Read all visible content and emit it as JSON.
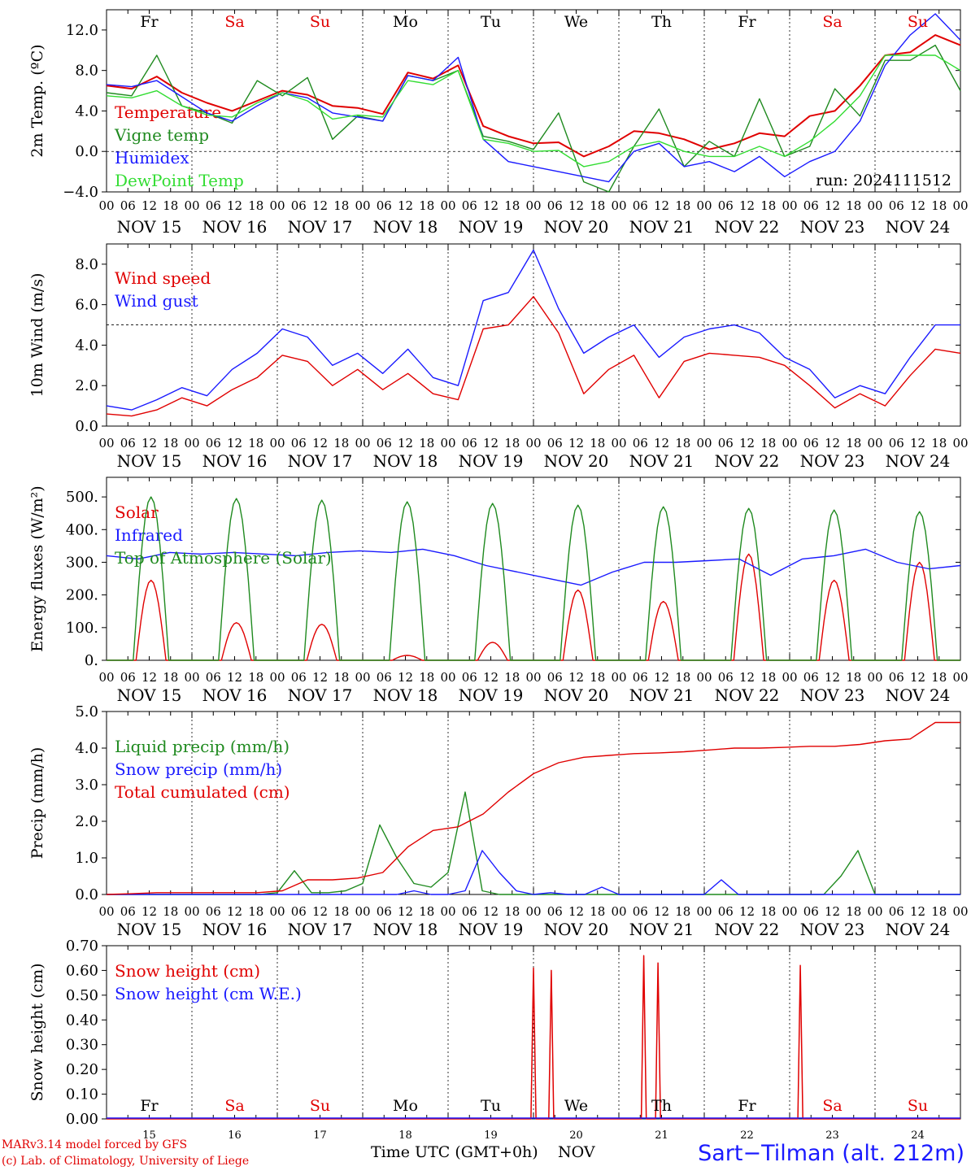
{
  "days": {
    "names": [
      "Fr",
      "Sa",
      "Su",
      "Mo",
      "Tu",
      "We",
      "Th",
      "Fr",
      "Sa",
      "Su"
    ],
    "weekend_color": "#e00000",
    "weekday_color": "#000000",
    "weekend_flags": [
      false,
      true,
      true,
      false,
      false,
      false,
      false,
      false,
      true,
      true
    ],
    "date_labels": [
      "NOV 15",
      "NOV 16",
      "NOV 17",
      "NOV 18",
      "NOV 19",
      "NOV 20",
      "NOV 21",
      "NOV 22",
      "NOV 23",
      "NOV 24"
    ],
    "day_numbers": [
      "15",
      "16",
      "17",
      "18",
      "19",
      "20",
      "21",
      "22",
      "23",
      "24"
    ],
    "hour_ticks": [
      "00",
      "06",
      "12",
      "18"
    ],
    "last_tick": "00"
  },
  "footer": {
    "model_line": "MARv3.14 model forced by GFS",
    "copyright_line": "(c) Lab. of Climatology, University of Liege",
    "xlabel": "Time UTC (GMT+0h)",
    "month": "NOV",
    "station": "Sart−Tilman (alt. 212m)"
  },
  "chart_data": [
    {
      "type": "line",
      "ylabel": "2m Temp. (ºC)",
      "ylim": [
        -4,
        14
      ],
      "yticks": [
        "12.0",
        "8.0",
        "4.0",
        "0.0",
        "−4.0"
      ],
      "ytick_values": [
        12,
        8,
        4,
        0,
        -4
      ],
      "ref_line": 0,
      "annotation": "run: 2024111512",
      "x_hours": [
        0,
        6,
        12,
        18,
        24,
        30,
        36,
        42,
        48,
        54,
        60,
        66,
        72,
        78,
        84,
        90,
        96,
        102,
        108,
        114,
        120,
        126,
        132,
        138,
        144,
        150,
        156,
        162,
        168,
        174,
        180,
        186,
        192,
        198,
        204,
        210,
        216,
        222,
        228,
        234,
        240
      ],
      "series": [
        {
          "name": "Temperature",
          "color": "#e00000",
          "values": [
            6.5,
            6.2,
            7.4,
            5.8,
            4.8,
            4.0,
            5.0,
            6.0,
            5.6,
            4.5,
            4.3,
            3.7,
            7.8,
            7.2,
            8.5,
            2.5,
            1.5,
            0.8,
            0.9,
            -0.5,
            0.5,
            2.0,
            1.8,
            1.2,
            0.2,
            0.8,
            1.8,
            1.5,
            3.5,
            4.0,
            6.5,
            9.5,
            9.8,
            11.5,
            10.5
          ]
        },
        {
          "name": "Vigne temp",
          "color": "#1f8a1f",
          "values": [
            5.8,
            5.5,
            9.5,
            4.5,
            3.8,
            2.8,
            7.0,
            5.5,
            7.3,
            1.2,
            3.5,
            3.0,
            7.5,
            7.0,
            8.0,
            1.5,
            1.0,
            0.2,
            3.8,
            -3.0,
            -4.0,
            0.5,
            4.2,
            -1.5,
            1.0,
            -0.5,
            5.2,
            -0.5,
            0.5,
            6.2,
            3.5,
            9.0,
            9.0,
            10.5,
            6.0
          ]
        },
        {
          "name": "Humidex",
          "color": "#1a1aff",
          "values": [
            6.6,
            6.4,
            7.0,
            5.4,
            3.8,
            3.0,
            4.5,
            5.8,
            5.3,
            3.8,
            3.4,
            3.0,
            7.5,
            7.0,
            9.3,
            1.2,
            -1.0,
            -1.5,
            -2.0,
            -2.5,
            -3.0,
            0.0,
            0.8,
            -1.5,
            -1.0,
            -2.0,
            -0.5,
            -2.5,
            -1.0,
            0.0,
            3.0,
            8.5,
            11.5,
            13.6,
            11.0
          ]
        },
        {
          "name": "DewPoint Temp",
          "color": "#33dd33",
          "values": [
            5.5,
            5.3,
            6.0,
            4.5,
            3.6,
            3.4,
            4.8,
            5.8,
            5.0,
            3.2,
            3.6,
            3.4,
            7.0,
            6.6,
            8.0,
            1.2,
            0.8,
            0.0,
            0.1,
            -1.5,
            -1.0,
            0.5,
            1.0,
            0.0,
            -0.5,
            -0.5,
            0.5,
            -0.5,
            1.0,
            3.0,
            5.5,
            9.5,
            9.5,
            9.5,
            8.0
          ]
        }
      ]
    },
    {
      "type": "line",
      "ylabel": "10m Wind (m/s)",
      "ylim": [
        0,
        9
      ],
      "yticks": [
        "8.0",
        "6.0",
        "4.0",
        "2.0",
        "0.0"
      ],
      "ytick_values": [
        8,
        6,
        4,
        2,
        0
      ],
      "ref_line": 5,
      "series": [
        {
          "name": "Wind speed",
          "color": "#e00000",
          "values": [
            0.6,
            0.5,
            0.8,
            1.4,
            1.0,
            1.8,
            2.4,
            3.5,
            3.2,
            2.0,
            2.8,
            1.8,
            2.6,
            1.6,
            1.3,
            4.8,
            5.0,
            6.4,
            4.6,
            1.6,
            2.8,
            3.5,
            1.4,
            3.2,
            3.6,
            3.5,
            3.4,
            3.0,
            2.0,
            0.9,
            1.6,
            1.0,
            2.5,
            3.8,
            3.6
          ]
        },
        {
          "name": "Wind gust",
          "color": "#1a1aff",
          "values": [
            1.0,
            0.8,
            1.3,
            1.9,
            1.5,
            2.8,
            3.6,
            4.8,
            4.4,
            3.0,
            3.6,
            2.6,
            3.8,
            2.4,
            2.0,
            6.2,
            6.6,
            8.7,
            5.8,
            3.6,
            4.4,
            5.0,
            3.4,
            4.4,
            4.8,
            5.0,
            4.6,
            3.4,
            2.8,
            1.4,
            2.0,
            1.6,
            3.4,
            5.0,
            5.0
          ]
        }
      ]
    },
    {
      "type": "line",
      "ylabel": "Energy fluxes (W/m²)",
      "ylim": [
        0,
        560
      ],
      "yticks": [
        "500.",
        "400.",
        "300.",
        "200.",
        "100.",
        "0."
      ],
      "ytick_values": [
        500,
        400,
        300,
        200,
        100,
        0
      ],
      "series": [
        {
          "name": "Solar",
          "color": "#e00000",
          "peaks": [
            245,
            115,
            110,
            15,
            55,
            215,
            180,
            325,
            245,
            300
          ]
        },
        {
          "name": "Infrared",
          "color": "#1a1aff",
          "values": [
            320,
            310,
            330,
            325,
            330,
            325,
            320,
            330,
            335,
            330,
            340,
            320,
            290,
            270,
            250,
            230,
            270,
            300,
            300,
            305,
            310,
            260,
            310,
            320,
            340,
            300,
            280,
            290
          ]
        },
        {
          "name": "Top of Atmosphere (Solar)",
          "color": "#1f8a1f",
          "peaks": [
            500,
            495,
            490,
            485,
            480,
            475,
            470,
            465,
            460,
            455
          ]
        }
      ]
    },
    {
      "type": "line",
      "ylabel": "Precip (mm/h)",
      "ylim": [
        0,
        5
      ],
      "yticks": [
        "5.0",
        "4.0",
        "3.0",
        "2.0",
        "1.0",
        "0.0"
      ],
      "ytick_values": [
        5,
        4,
        3,
        2,
        1,
        0
      ],
      "series": [
        {
          "name": "Liquid precip (mm/h)",
          "color": "#1f8a1f",
          "values": [
            0,
            0,
            0,
            0,
            0,
            0,
            0,
            0,
            0,
            0,
            0.05,
            0.65,
            0.05,
            0.05,
            0.1,
            0.3,
            1.9,
            1.0,
            0.3,
            0.2,
            0.6,
            2.8,
            0.1,
            0.0,
            0,
            0,
            0,
            0,
            0,
            0,
            0,
            0,
            0,
            0,
            0,
            0,
            0,
            0,
            0,
            0,
            0,
            0,
            0,
            0.5,
            1.2,
            0,
            0,
            0,
            0,
            0,
            0
          ]
        },
        {
          "name": "Snow precip (mm/h)",
          "color": "#1a1aff",
          "values": [
            0,
            0,
            0,
            0,
            0,
            0,
            0,
            0,
            0,
            0,
            0,
            0,
            0,
            0,
            0,
            0,
            0,
            0,
            0.1,
            0,
            0,
            0.1,
            1.2,
            0.6,
            0.1,
            0,
            0.05,
            0,
            0,
            0.2,
            0,
            0,
            0,
            0,
            0,
            0,
            0.4,
            0,
            0,
            0,
            0,
            0,
            0,
            0,
            0,
            0,
            0,
            0,
            0,
            0,
            0
          ]
        },
        {
          "name": "Total cumulated (cm)",
          "color": "#e00000",
          "values": [
            0,
            0.02,
            0.05,
            0.05,
            0.05,
            0.05,
            0.05,
            0.1,
            0.4,
            0.4,
            0.45,
            0.6,
            1.3,
            1.75,
            1.85,
            2.2,
            2.8,
            3.3,
            3.6,
            3.75,
            3.8,
            3.85,
            3.87,
            3.9,
            3.95,
            4.0,
            4.0,
            4.02,
            4.05,
            4.05,
            4.1,
            4.2,
            4.25,
            4.7,
            4.7
          ]
        }
      ]
    },
    {
      "type": "line",
      "ylabel": "Snow height (cm)",
      "ylim": [
        0,
        0.7
      ],
      "yticks": [
        "0.70",
        "0.60",
        "0.50",
        "0.40",
        "0.30",
        "0.20",
        "0.10",
        "0.00"
      ],
      "ytick_values": [
        0.7,
        0.6,
        0.5,
        0.4,
        0.3,
        0.2,
        0.1,
        0
      ],
      "series": [
        {
          "name": "Snow height (cm)",
          "color": "#e00000",
          "spikes": [
            [
              120,
              0.61
            ],
            [
              125,
              0.6
            ],
            [
              151,
              0.66
            ],
            [
              155,
              0.63
            ],
            [
              195,
              0.62
            ]
          ]
        },
        {
          "name": "Snow height (cm W.E.)",
          "color": "#1a1aff",
          "values": []
        }
      ]
    }
  ]
}
